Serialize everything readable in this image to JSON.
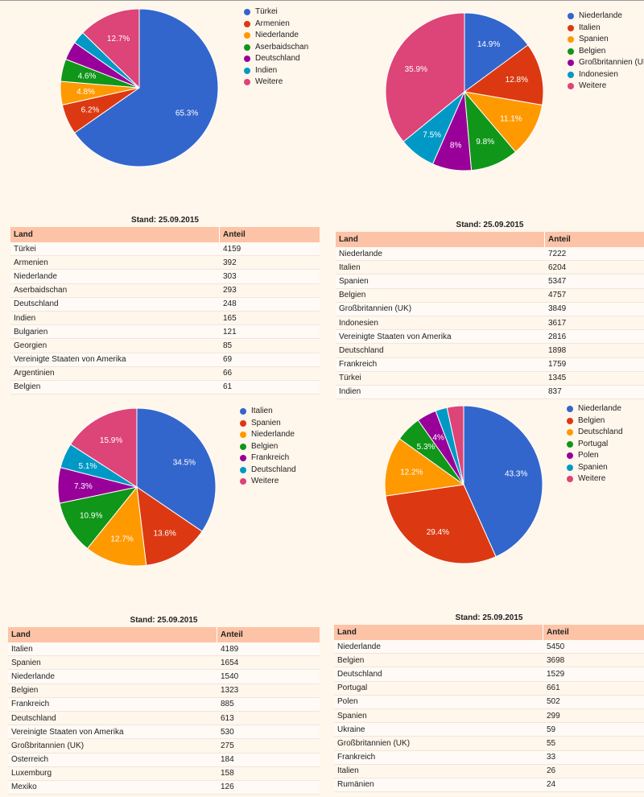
{
  "chart_data": [
    {
      "type": "pie",
      "slices": [
        {
          "label": "Türkei",
          "value": 65.3,
          "color": "#3366cc"
        },
        {
          "label": "Armenien",
          "value": 6.2,
          "color": "#dc3912"
        },
        {
          "label": "Niederlande",
          "value": 4.8,
          "color": "#ff9900"
        },
        {
          "label": "Aserbaidschan",
          "value": 4.6,
          "color": "#109618"
        },
        {
          "label": "Deutschland",
          "value": 3.8,
          "color": "#990099"
        },
        {
          "label": "Indien",
          "value": 2.6,
          "color": "#0099c6"
        },
        {
          "label": "Weitere",
          "value": 12.7,
          "color": "#dd4477"
        }
      ],
      "slice_labels": [
        "65.3%",
        "6.2%",
        "4.8%",
        "4.6%",
        "",
        "",
        "12.7%"
      ],
      "legend_position": "right"
    },
    {
      "type": "pie",
      "slices": [
        {
          "label": "Niederlande",
          "value": 14.9,
          "color": "#3366cc"
        },
        {
          "label": "Italien",
          "value": 12.8,
          "color": "#dc3912"
        },
        {
          "label": "Spanien",
          "value": 11.1,
          "color": "#ff9900"
        },
        {
          "label": "Belgien",
          "value": 9.8,
          "color": "#109618"
        },
        {
          "label": "Großbritannien (UK)",
          "value": 8.0,
          "color": "#990099"
        },
        {
          "label": "Indonesien",
          "value": 7.5,
          "color": "#0099c6"
        },
        {
          "label": "Weitere",
          "value": 35.9,
          "color": "#dd4477"
        }
      ],
      "slice_labels": [
        "14.9%",
        "12.8%",
        "11.1%",
        "9.8%",
        "8%",
        "7.5%",
        "35.9%"
      ],
      "legend_position": "right"
    },
    {
      "type": "pie",
      "slices": [
        {
          "label": "Italien",
          "value": 34.5,
          "color": "#3366cc"
        },
        {
          "label": "Spanien",
          "value": 13.6,
          "color": "#dc3912"
        },
        {
          "label": "Niederlande",
          "value": 12.7,
          "color": "#ff9900"
        },
        {
          "label": "Belgien",
          "value": 10.9,
          "color": "#109618"
        },
        {
          "label": "Frankreich",
          "value": 7.3,
          "color": "#990099"
        },
        {
          "label": "Deutschland",
          "value": 5.1,
          "color": "#0099c6"
        },
        {
          "label": "Weitere",
          "value": 15.9,
          "color": "#dd4477"
        }
      ],
      "slice_labels": [
        "34.5%",
        "13.6%",
        "12.7%",
        "10.9%",
        "7.3%",
        "5.1%",
        "15.9%"
      ],
      "legend_position": "right"
    },
    {
      "type": "pie",
      "slices": [
        {
          "label": "Niederlande",
          "value": 43.3,
          "color": "#3366cc"
        },
        {
          "label": "Belgien",
          "value": 29.4,
          "color": "#dc3912"
        },
        {
          "label": "Deutschland",
          "value": 12.2,
          "color": "#ff9900"
        },
        {
          "label": "Portugal",
          "value": 5.3,
          "color": "#109618"
        },
        {
          "label": "Polen",
          "value": 4.0,
          "color": "#990099"
        },
        {
          "label": "Spanien",
          "value": 2.4,
          "color": "#0099c6"
        },
        {
          "label": "Weitere",
          "value": 3.4,
          "color": "#dd4477"
        }
      ],
      "slice_labels": [
        "43.3%",
        "29.4%",
        "12.2%",
        "5.3%",
        "4%",
        "",
        ""
      ],
      "legend_position": "right"
    }
  ],
  "tables": [
    {
      "caption": "Stand: 25.09.2015",
      "headers": [
        "Land",
        "Anteil"
      ],
      "rows": [
        [
          "Türkei",
          "4159"
        ],
        [
          "Armenien",
          "392"
        ],
        [
          "Niederlande",
          "303"
        ],
        [
          "Aserbaidschan",
          "293"
        ],
        [
          "Deutschland",
          "248"
        ],
        [
          "Indien",
          "165"
        ],
        [
          "Bulgarien",
          "121"
        ],
        [
          "Georgien",
          "85"
        ],
        [
          "Vereinigte Staaten von Amerika",
          "69"
        ],
        [
          "Argentinien",
          "66"
        ],
        [
          "Belgien",
          "61"
        ]
      ]
    },
    {
      "caption": "Stand: 25.09.2015",
      "headers": [
        "Land",
        "Anteil"
      ],
      "rows": [
        [
          "Niederlande",
          "7222"
        ],
        [
          "Italien",
          "6204"
        ],
        [
          "Spanien",
          "5347"
        ],
        [
          "Belgien",
          "4757"
        ],
        [
          "Großbritannien (UK)",
          "3849"
        ],
        [
          "Indonesien",
          "3617"
        ],
        [
          "Vereinigte Staaten von Amerika",
          "2816"
        ],
        [
          "Deutschland",
          "1898"
        ],
        [
          "Frankreich",
          "1759"
        ],
        [
          "Türkei",
          "1345"
        ],
        [
          "Indien",
          "837"
        ]
      ]
    },
    {
      "caption": "Stand: 25.09.2015",
      "headers": [
        "Land",
        "Anteil"
      ],
      "rows": [
        [
          "Italien",
          "4189"
        ],
        [
          "Spanien",
          "1654"
        ],
        [
          "Niederlande",
          "1540"
        ],
        [
          "Belgien",
          "1323"
        ],
        [
          "Frankreich",
          "885"
        ],
        [
          "Deutschland",
          "613"
        ],
        [
          "Vereinigte Staaten von Amerika",
          "530"
        ],
        [
          "Großbritannien (UK)",
          "275"
        ],
        [
          "Österreich",
          "184"
        ],
        [
          "Luxemburg",
          "158"
        ],
        [
          "Mexiko",
          "126"
        ]
      ]
    },
    {
      "caption": "Stand: 25.09.2015",
      "headers": [
        "Land",
        "Anteil"
      ],
      "rows": [
        [
          "Niederlande",
          "5450"
        ],
        [
          "Belgien",
          "3698"
        ],
        [
          "Deutschland",
          "1529"
        ],
        [
          "Portugal",
          "661"
        ],
        [
          "Polen",
          "502"
        ],
        [
          "Spanien",
          "299"
        ],
        [
          "Ukraine",
          "59"
        ],
        [
          "Großbritannien (UK)",
          "55"
        ],
        [
          "Frankreich",
          "33"
        ],
        [
          "Italien",
          "26"
        ],
        [
          "Rumänien",
          "24"
        ]
      ]
    }
  ]
}
